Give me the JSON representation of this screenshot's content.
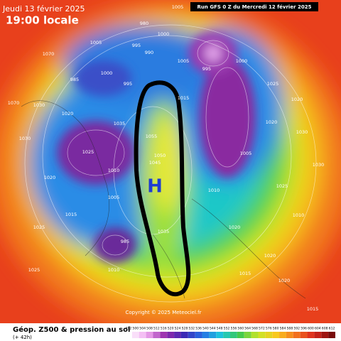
{
  "header": {
    "date": "Jeudi 13 février 2025",
    "time": "19:00 locale",
    "run": "Run GFS 0 Z du Mercredi 12 février 2025"
  },
  "map": {
    "high_label": "H",
    "copyright": "Copyright © 2025 Meteociel.fr",
    "isobar_labels": [
      "1005",
      "980",
      "1000",
      "1005",
      "995",
      "990",
      "1070",
      "1005",
      "995",
      "1000",
      "1025",
      "1020",
      "985",
      "995",
      "1000",
      "1015",
      "1030",
      "1035",
      "1020",
      "1055",
      "1005",
      "1020",
      "1030",
      "1025",
      "1050",
      "1045",
      "1030",
      "1010",
      "1020",
      "1005",
      "1010",
      "1025",
      "1030",
      "1025",
      "1015",
      "985",
      "1010",
      "1020",
      "1020",
      "1015",
      "1035",
      "1025",
      "1010",
      "1015",
      "1020",
      "1070"
    ]
  },
  "footer": {
    "title": "Géop. Z500 & pression au sol",
    "lead": "(+ 42h)",
    "colorbar": [
      492,
      500,
      504,
      508,
      512,
      516,
      520,
      524,
      528,
      532,
      536,
      540,
      544,
      548,
      552,
      556,
      560,
      564,
      568,
      572,
      576,
      580,
      584,
      588,
      592,
      596,
      600,
      604,
      608,
      612
    ]
  }
}
